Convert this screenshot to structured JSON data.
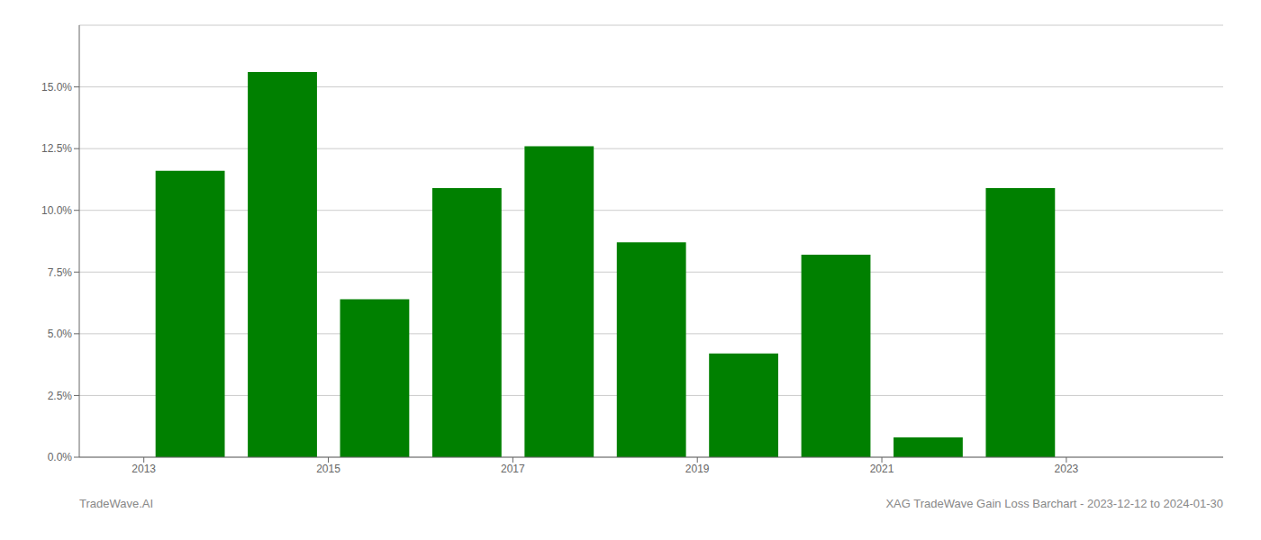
{
  "chart_data": {
    "type": "bar",
    "x": [
      2013,
      2014,
      2015,
      2016,
      2017,
      2018,
      2019,
      2020,
      2021,
      2022,
      2023
    ],
    "values": [
      0.116,
      0.156,
      0.064,
      0.109,
      0.126,
      0.087,
      0.042,
      0.082,
      0.008,
      0.109,
      0.0
    ],
    "color": "#008000",
    "xlim": [
      2011.8,
      2024.2
    ],
    "xticks": [
      {
        "value": 2012.5,
        "label": "2013"
      },
      {
        "value": 2014.5,
        "label": "2015"
      },
      {
        "value": 2016.5,
        "label": "2017"
      },
      {
        "value": 2018.5,
        "label": "2019"
      },
      {
        "value": 2020.5,
        "label": "2021"
      },
      {
        "value": 2022.5,
        "label": "2023"
      }
    ],
    "ylim": [
      0,
      0.175
    ],
    "yticks": [
      {
        "value": 0.0,
        "label": "0.0%"
      },
      {
        "value": 0.025,
        "label": "2.5%"
      },
      {
        "value": 0.05,
        "label": "5.0%"
      },
      {
        "value": 0.075,
        "label": "7.5%"
      },
      {
        "value": 0.1,
        "label": "10.0%"
      },
      {
        "value": 0.125,
        "label": "12.5%"
      },
      {
        "value": 0.15,
        "label": "15.0%"
      }
    ],
    "grid": true,
    "annotations": [
      "TradeWave.AI",
      "XAG TradeWave Gain Loss Barchart - 2023-12-12 to 2024-01-30"
    ]
  }
}
